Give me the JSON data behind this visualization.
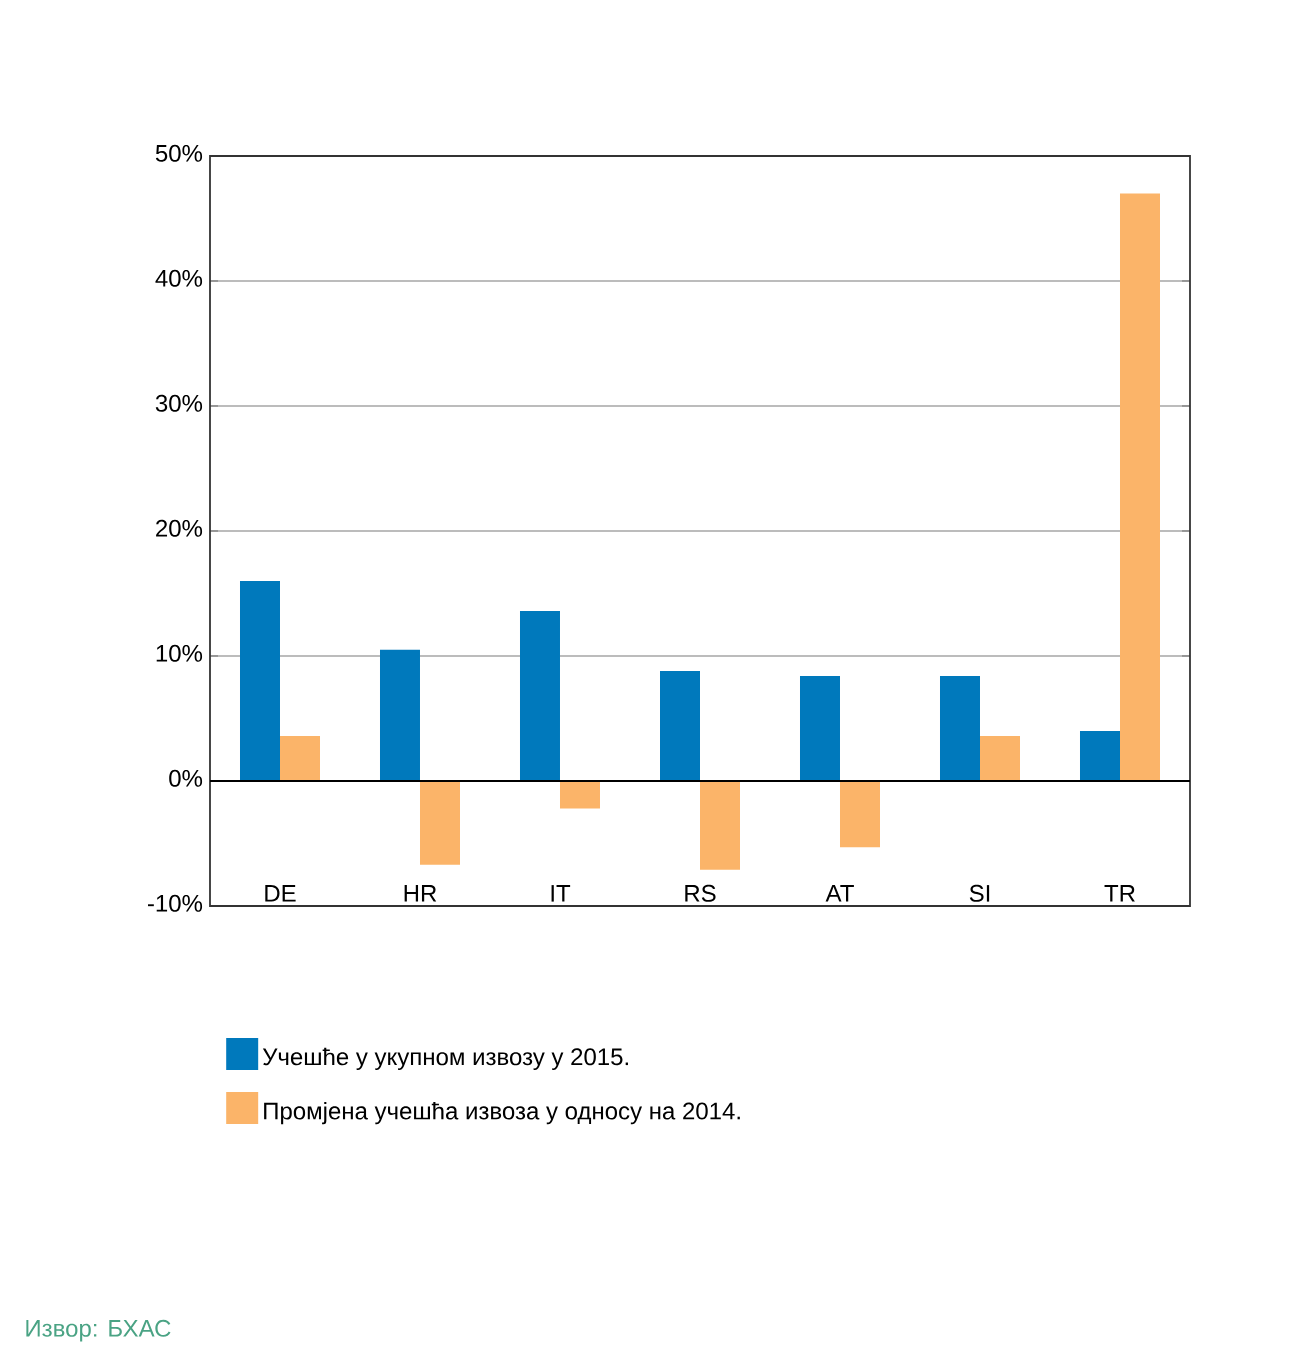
{
  "chart_data": {
    "type": "bar",
    "categories": [
      "DE",
      "HR",
      "IT",
      "RS",
      "AT",
      "SI",
      "TR"
    ],
    "series": [
      {
        "name": "Учешће у укупном извозу у 2015.",
        "color": "#0079bc",
        "values": [
          16.0,
          10.5,
          13.6,
          8.8,
          8.4,
          8.4,
          4.0
        ]
      },
      {
        "name": "Промјена учешћа извоза у односу на 2014.",
        "color": "#fbb469",
        "values": [
          3.6,
          -6.7,
          -2.2,
          -7.1,
          -5.3,
          3.6,
          47.0
        ]
      }
    ],
    "ylim": [
      -10,
      50
    ],
    "yticks": [
      {
        "value": -10,
        "label": "-10%"
      },
      {
        "value": 0,
        "label": "0%"
      },
      {
        "value": 10,
        "label": "10%"
      },
      {
        "value": 20,
        "label": "20%"
      },
      {
        "value": 30,
        "label": "30%"
      },
      {
        "value": 40,
        "label": "40%"
      },
      {
        "value": 50,
        "label": "50%"
      }
    ],
    "grid": "y",
    "legend": "bottom",
    "annotations": [
      "Извор: БХАС"
    ]
  }
}
